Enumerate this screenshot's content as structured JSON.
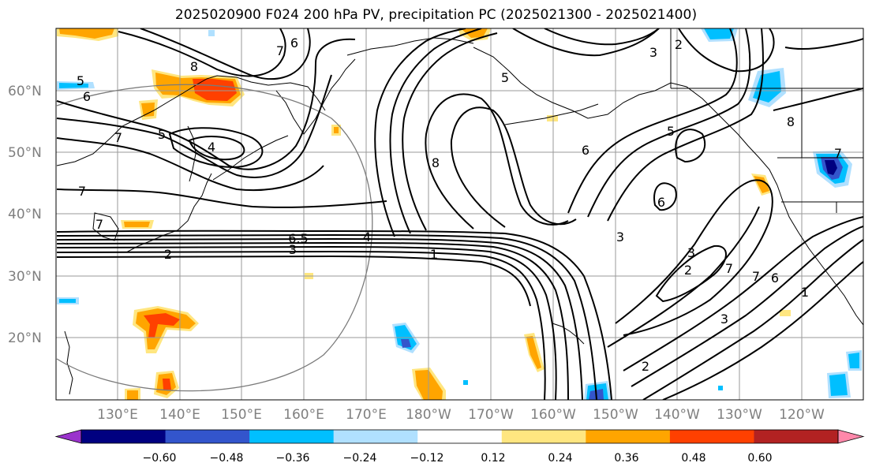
{
  "title": "2025020900 F024 200 hPa PV, precipitation PC (2025021300 - 2025021400)",
  "lat_labels": [
    "60°N",
    "50°N",
    "40°N",
    "30°N",
    "20°N"
  ],
  "lon_labels": [
    "130°E",
    "140°E",
    "150°E",
    "160°E",
    "170°E",
    "180°W",
    "170°W",
    "160°W",
    "150°W",
    "140°W",
    "130°W",
    "120°W"
  ],
  "contour_labels": [
    "1",
    "2",
    "3",
    "4",
    "5",
    "6",
    "7",
    "8",
    "6.5"
  ],
  "colorbar": {
    "tick_labels": [
      "−0.60",
      "−0.48",
      "−0.36",
      "−0.24",
      "−0.12",
      "0.12",
      "0.24",
      "0.36",
      "0.48",
      "0.60"
    ],
    "colors": [
      "#9a33cc",
      "#000080",
      "#3355cc",
      "#00bfff",
      "#b0e0ff",
      "#ffffff",
      "#ffe680",
      "#ffa500",
      "#ff4000",
      "#b22222",
      "#ff88aa"
    ]
  },
  "colors": {
    "positive_light": "#ffe680",
    "positive_mid": "#ffa500",
    "positive_strong": "#ff4000",
    "negative_light": "#b0e0ff",
    "negative_mid": "#00bfff",
    "negative_strong": "#3355cc",
    "negative_max": "#000080"
  }
}
